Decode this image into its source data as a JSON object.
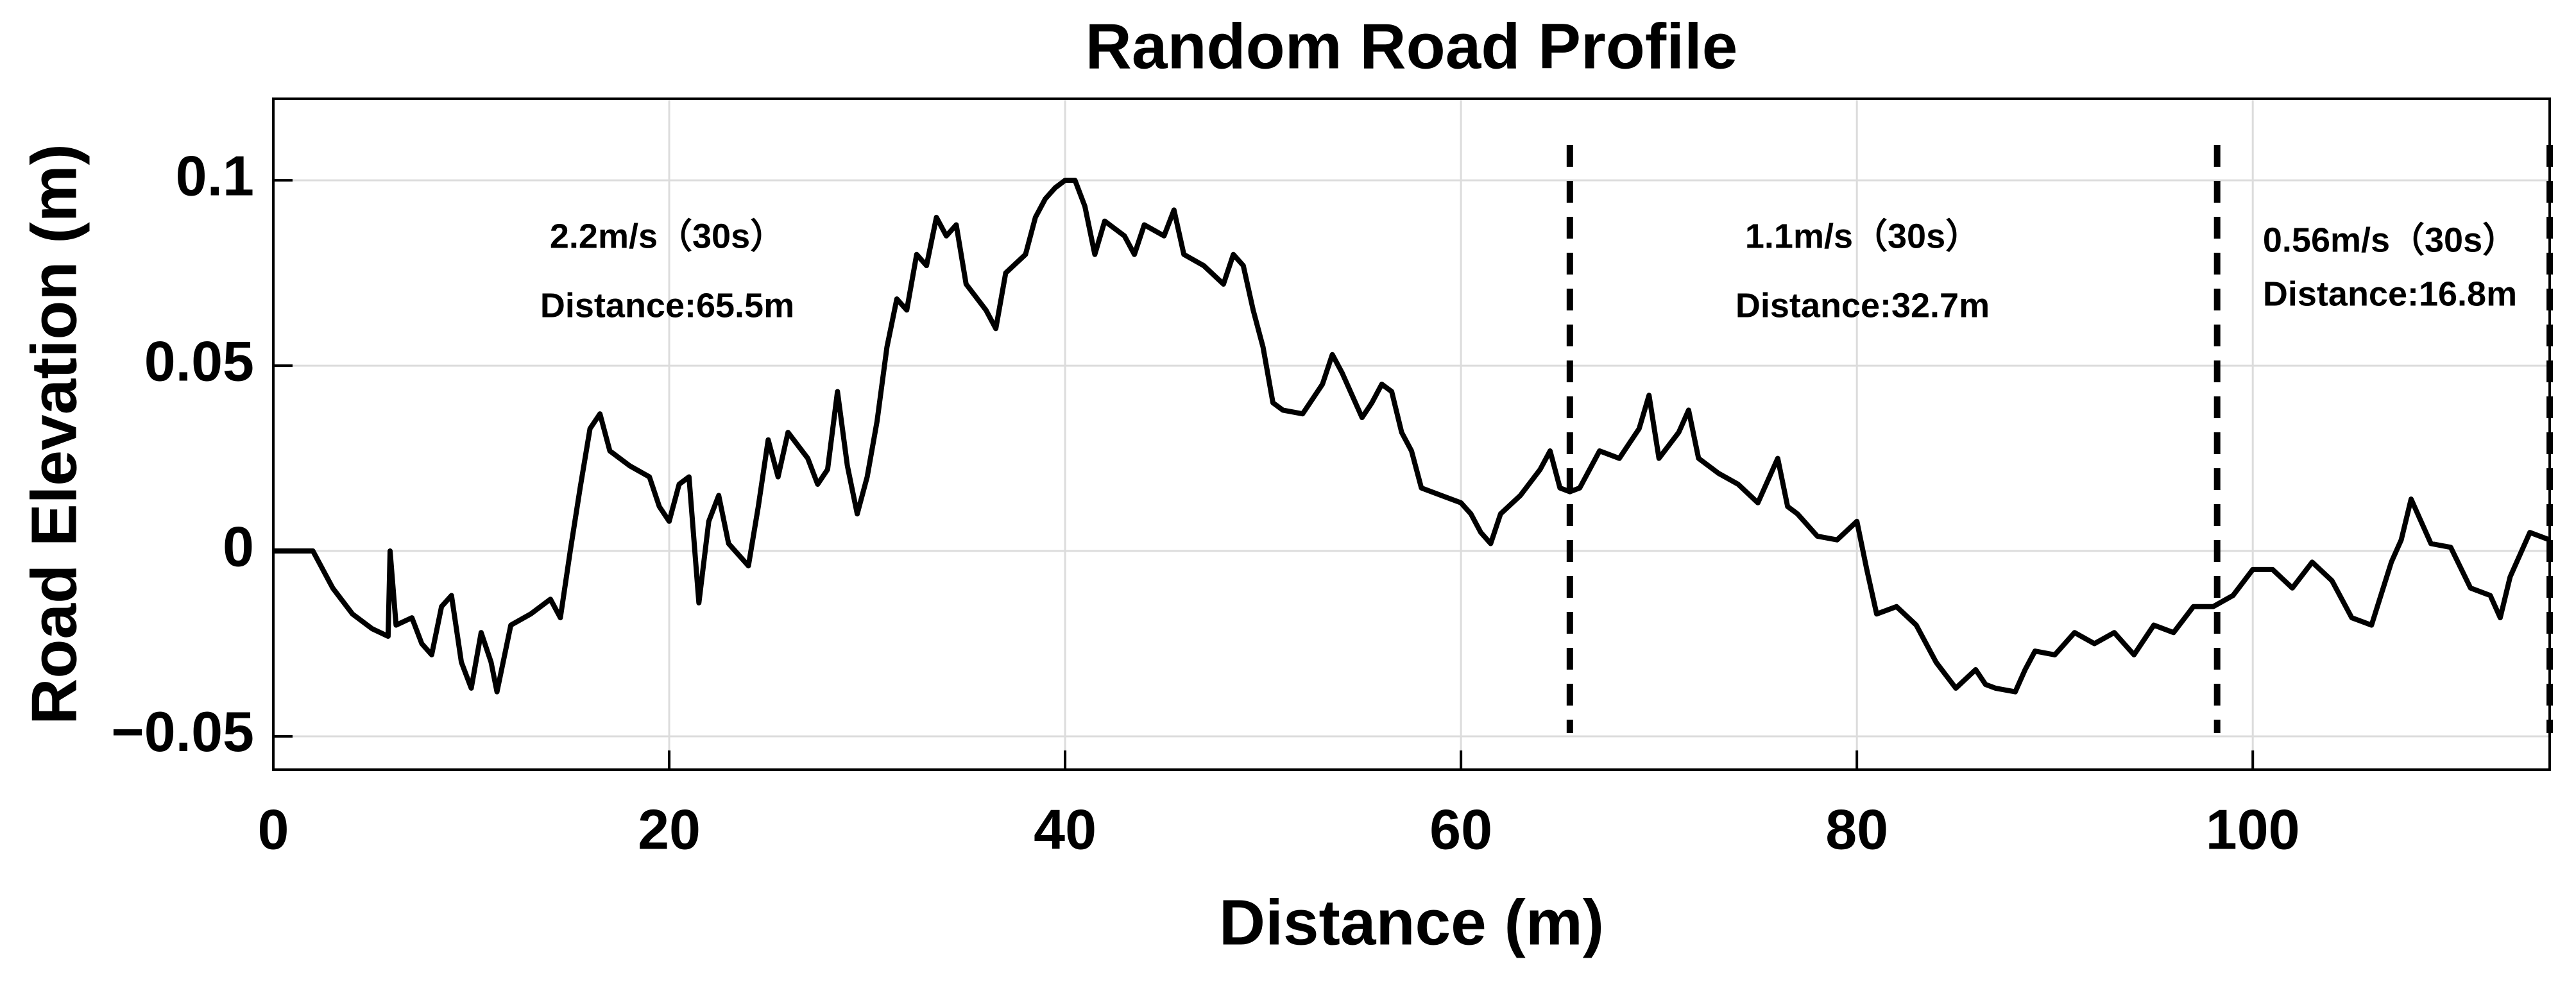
{
  "chart_data": {
    "type": "line",
    "title": "Random Road Profile",
    "x_label": "Distance (m)",
    "y_label": "Road Elevation (m)",
    "color": "#000000",
    "grid": true,
    "xlim": [
      0,
      115
    ],
    "ylim": [
      -0.059,
      0.122
    ],
    "xticks": [
      0,
      20,
      40,
      60,
      80,
      100
    ],
    "yticks": [
      {
        "value": -0.05,
        "label": "−0.05"
      },
      0,
      0.05,
      0.1
    ],
    "vlines": [
      65.5,
      98.2,
      115
    ],
    "annotations": [
      [
        "2.2m/s（30s）",
        "Distance:65.5m"
      ],
      [
        "1.1m/s（30s）",
        "Distance:32.7m"
      ],
      [
        "0.56m/s（30s）",
        "Distance:16.8m"
      ]
    ],
    "x": [
      0,
      2,
      3,
      4,
      5,
      5.8,
      5.9,
      6.2,
      7,
      7.5,
      8,
      8.5,
      9,
      9.5,
      10,
      10.5,
      11,
      11.3,
      12,
      13,
      14,
      14.5,
      15,
      15.5,
      16,
      16.5,
      17,
      18,
      19,
      19.5,
      20,
      20.5,
      21,
      21.5,
      22,
      22.5,
      23,
      24,
      24.5,
      25,
      25.5,
      26,
      27,
      27.5,
      28,
      28.5,
      29,
      29.5,
      30,
      30.5,
      31,
      31.5,
      32,
      32.5,
      33,
      33.5,
      34,
      34.5,
      35,
      36,
      36.5,
      37,
      38,
      38.5,
      39,
      39.5,
      40,
      40.5,
      41,
      41.5,
      42,
      43,
      43.5,
      44,
      45,
      45.5,
      46,
      47,
      48,
      48.5,
      49,
      49.5,
      50,
      50.5,
      51,
      52,
      53,
      53.5,
      54,
      55,
      55.5,
      56,
      56.5,
      57,
      57.5,
      58,
      59,
      60,
      60.5,
      61,
      61.5,
      62,
      63,
      64,
      64.5,
      65,
      65.5,
      66,
      67,
      68,
      69,
      69.5,
      70,
      71,
      71.5,
      72,
      73,
      74,
      75,
      76,
      76.5,
      77,
      78,
      79,
      80,
      80.5,
      81,
      82,
      83,
      84,
      85,
      86,
      86.5,
      87,
      88,
      88.5,
      89,
      90,
      91,
      92,
      93,
      94,
      95,
      96,
      97,
      98,
      99,
      100,
      101,
      102,
      103,
      104,
      105,
      106,
      107,
      107.5,
      108,
      109,
      110,
      111,
      112,
      112.5,
      113,
      114,
      115
    ],
    "values": [
      0,
      0,
      -0.01,
      -0.017,
      -0.021,
      -0.023,
      0,
      -0.02,
      -0.018,
      -0.025,
      -0.028,
      -0.015,
      -0.012,
      -0.03,
      -0.037,
      -0.022,
      -0.03,
      -0.038,
      -0.02,
      -0.017,
      -0.013,
      -0.018,
      0,
      0.017,
      0.033,
      0.037,
      0.027,
      0.023,
      0.02,
      0.012,
      0.008,
      0.018,
      0.02,
      -0.014,
      0.008,
      0.015,
      0.002,
      -0.004,
      0.012,
      0.03,
      0.02,
      0.032,
      0.025,
      0.018,
      0.022,
      0.043,
      0.023,
      0.01,
      0.02,
      0.035,
      0.055,
      0.068,
      0.065,
      0.08,
      0.077,
      0.09,
      0.085,
      0.088,
      0.072,
      0.065,
      0.06,
      0.075,
      0.08,
      0.09,
      0.095,
      0.098,
      0.1,
      0.1,
      0.093,
      0.08,
      0.089,
      0.085,
      0.08,
      0.088,
      0.085,
      0.092,
      0.08,
      0.077,
      0.072,
      0.08,
      0.077,
      0.065,
      0.055,
      0.04,
      0.038,
      0.037,
      0.045,
      0.053,
      0.048,
      0.036,
      0.04,
      0.045,
      0.043,
      0.032,
      0.027,
      0.017,
      0.015,
      0.013,
      0.01,
      0.005,
      0.002,
      0.01,
      0.015,
      0.022,
      0.027,
      0.017,
      0.016,
      0.017,
      0.027,
      0.025,
      0.033,
      0.042,
      0.025,
      0.032,
      0.038,
      0.025,
      0.021,
      0.018,
      0.013,
      0.025,
      0.012,
      0.01,
      0.004,
      0.003,
      0.008,
      -0.005,
      -0.017,
      -0.015,
      -0.02,
      -0.03,
      -0.037,
      -0.032,
      -0.036,
      -0.037,
      -0.038,
      -0.032,
      -0.027,
      -0.028,
      -0.022,
      -0.025,
      -0.022,
      -0.028,
      -0.02,
      -0.022,
      -0.015,
      -0.015,
      -0.012,
      -0.005,
      -0.005,
      -0.01,
      -0.003,
      -0.008,
      -0.018,
      -0.02,
      -0.003,
      0.003,
      0.014,
      0.002,
      0.001,
      -0.01,
      -0.012,
      -0.018,
      -0.007,
      0.005,
      0.003
    ]
  }
}
